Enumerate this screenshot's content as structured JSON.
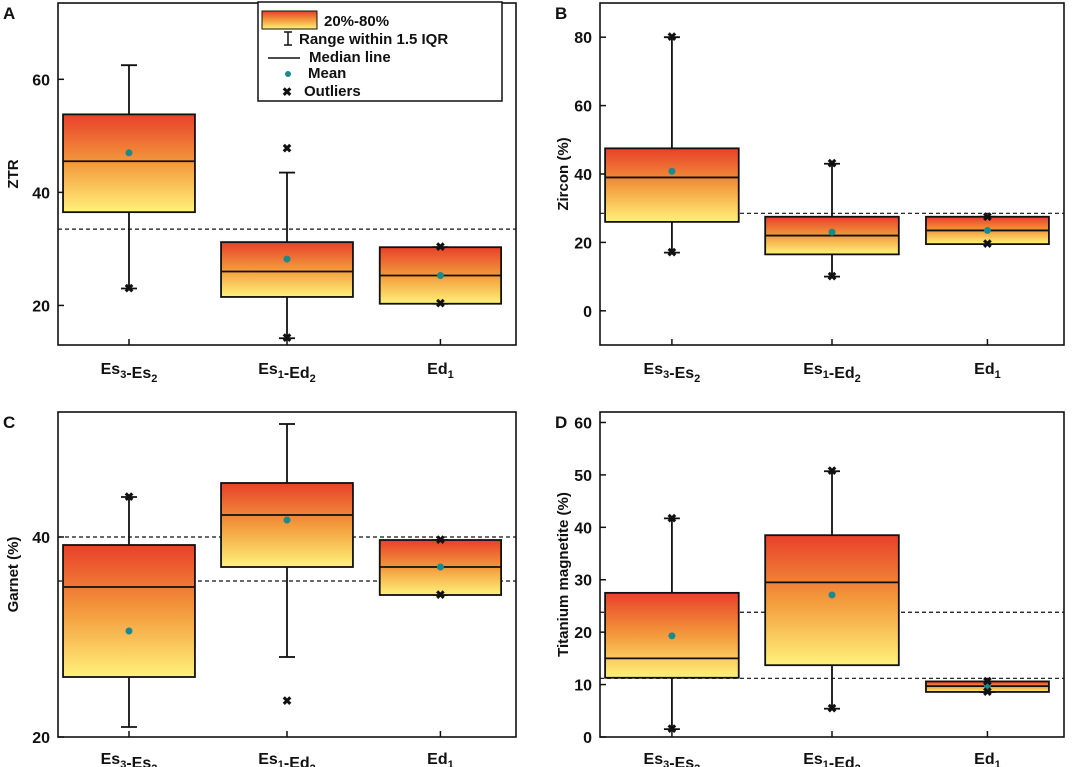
{
  "colors": {
    "box_top": "#e8402a",
    "box_mid": "#f39a3c",
    "box_bottom": "#fff27a",
    "mean": "#1a8a8a",
    "axis": "#111111"
  },
  "legend": {
    "box": "20%-80%",
    "whisker": "Range within 1.5 IQR",
    "median": "Median line",
    "mean": "Mean",
    "outliers": "Outliers"
  },
  "categories": [
    {
      "base": "Es",
      "sub": "3",
      "sep": "-",
      "base2": "Es",
      "sub2": "2"
    },
    {
      "base": "Es",
      "sub": "1",
      "sep": "-",
      "base2": "Ed",
      "sub2": "2"
    },
    {
      "base": "Ed",
      "sub": "1",
      "sep": "",
      "base2": "",
      "sub2": ""
    }
  ],
  "chart_data": [
    {
      "type": "box",
      "panel": "A",
      "ylabel": "ZTR",
      "ylim": [
        13,
        73.5
      ],
      "yticks": [
        20,
        40,
        60
      ],
      "ref_lines": [
        33.5
      ],
      "boxes": [
        {
          "q1": 36.5,
          "median": 45.5,
          "q3": 53.8,
          "mean": 47,
          "wlo": 23,
          "whi": 62.5,
          "outliers": [
            23
          ]
        },
        {
          "q1": 21.5,
          "median": 26,
          "q3": 31.2,
          "mean": 28.2,
          "wlo": 14.2,
          "whi": 43.5,
          "outliers": [
            47.8,
            14.2
          ]
        },
        {
          "q1": 20.3,
          "median": 25.3,
          "q3": 30.3,
          "mean": 25.3,
          "wlo": 20.3,
          "whi": 30.3,
          "outliers": [
            30.3,
            20.3
          ]
        }
      ]
    },
    {
      "type": "box",
      "panel": "B",
      "ylabel": "Zircon (%)",
      "ylim": [
        -10,
        90
      ],
      "yticks": [
        0,
        20,
        40,
        60,
        80
      ],
      "ref_lines": [
        28.5
      ],
      "boxes": [
        {
          "q1": 26,
          "median": 39,
          "q3": 47.5,
          "mean": 40.8,
          "wlo": 17,
          "whi": 80,
          "outliers": [
            80,
            17
          ]
        },
        {
          "q1": 16.5,
          "median": 22,
          "q3": 27.5,
          "mean": 23,
          "wlo": 10,
          "whi": 43,
          "outliers": [
            43,
            10
          ]
        },
        {
          "q1": 19.5,
          "median": 23.5,
          "q3": 27.5,
          "mean": 23.5,
          "wlo": 19.5,
          "whi": 27.5,
          "outliers": [
            27.5,
            19.5
          ]
        }
      ]
    },
    {
      "type": "box",
      "panel": "C",
      "ylabel": "Garnet (%)",
      "ylim": [
        20,
        52.5
      ],
      "yticks": [
        20,
        40
      ],
      "ref_lines": [
        40,
        35.6
      ],
      "boxes": [
        {
          "q1": 26,
          "median": 35,
          "q3": 39.2,
          "mean": 30.6,
          "wlo": 21,
          "whi": 44,
          "outliers": [
            44
          ]
        },
        {
          "q1": 37,
          "median": 42.2,
          "q3": 45.4,
          "mean": 41.7,
          "wlo": 28,
          "whi": 51.3,
          "outliers": [
            23.6
          ]
        },
        {
          "q1": 34.2,
          "median": 37,
          "q3": 39.7,
          "mean": 37,
          "wlo": 34.2,
          "whi": 39.7,
          "outliers": [
            39.7,
            34.2
          ]
        }
      ]
    },
    {
      "type": "box",
      "panel": "D",
      "ylabel": "Titanium magnetite (%)",
      "ylim": [
        0,
        62
      ],
      "yticks": [
        0,
        10,
        20,
        30,
        40,
        50,
        60
      ],
      "ref_lines": [
        23.8,
        11.2
      ],
      "boxes": [
        {
          "q1": 11.3,
          "median": 15,
          "q3": 27.5,
          "mean": 19.3,
          "wlo": 1.5,
          "whi": 41.7,
          "outliers": [
            41.7,
            1.5
          ]
        },
        {
          "q1": 13.7,
          "median": 29.5,
          "q3": 38.5,
          "mean": 27.1,
          "wlo": 5.4,
          "whi": 50.7,
          "outliers": [
            50.7,
            5.4
          ]
        },
        {
          "q1": 8.6,
          "median": 9.7,
          "q3": 10.6,
          "mean": 9.8,
          "wlo": 8.6,
          "whi": 10.6,
          "outliers": [
            10.6,
            8.6
          ]
        }
      ]
    }
  ]
}
